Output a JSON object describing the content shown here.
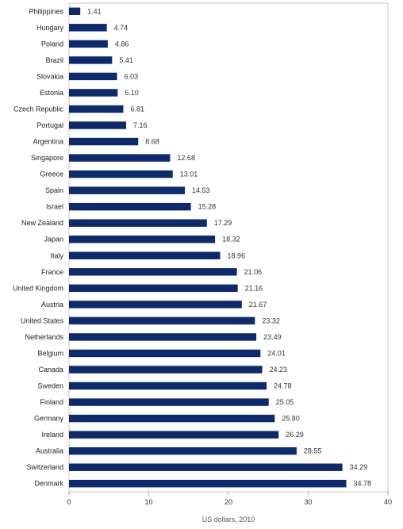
{
  "chart_data": {
    "type": "bar",
    "orientation": "horizontal",
    "title": "",
    "xlabel": "US dollars, 2010",
    "ylabel": "",
    "xlim": [
      0,
      40
    ],
    "xticks": [
      0,
      10,
      20,
      30,
      40
    ],
    "grid": false,
    "bar_color": "#0e2a6e",
    "categories": [
      "Philippines",
      "Hungary",
      "Poland",
      "Brazil",
      "Slovakia",
      "Estonia",
      "Czech Republic",
      "Portugal",
      "Argentina",
      "Singapore",
      "Greece",
      "Spain",
      "Israel",
      "New Zealand",
      "Japan",
      "Italy",
      "France",
      "United Kingdom",
      "Austria",
      "United States",
      "Netherlands",
      "Belgium",
      "Canada",
      "Sweden",
      "Finland",
      "Germany",
      "Ireland",
      "Australia",
      "Switzerland",
      "Denmark"
    ],
    "values": [
      1.41,
      4.74,
      4.86,
      5.41,
      6.03,
      6.1,
      6.81,
      7.16,
      8.68,
      12.68,
      13.01,
      14.53,
      15.28,
      17.29,
      18.32,
      18.96,
      21.06,
      21.16,
      21.67,
      23.32,
      23.49,
      24.01,
      24.23,
      24.78,
      25.05,
      25.8,
      26.29,
      28.55,
      34.29,
      34.78
    ],
    "value_labels": [
      "1.41",
      "4.74",
      "4.86",
      "5.41",
      "6.03",
      "6.10",
      "6.81",
      "7.16",
      "8.68",
      "12.68",
      "13.01",
      "14.53",
      "15.28",
      "17.29",
      "18.32",
      "18.96",
      "21.06",
      "21.16",
      "21.67",
      "23.32",
      "23.49",
      "24.01",
      "24.23",
      "24.78",
      "25.05",
      "25.80",
      "26.29",
      "28.55",
      "34.29",
      "34.78"
    ]
  }
}
